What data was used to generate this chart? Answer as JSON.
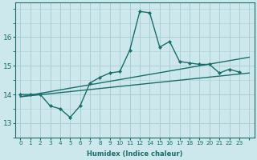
{
  "xlabel": "Humidex (Indice chaleur)",
  "bg_color": "#cce8ec",
  "grid_color": "#aacfd4",
  "line_color": "#1a6e6a",
  "xlim": [
    -0.5,
    23.5
  ],
  "ylim": [
    12.5,
    17.2
  ],
  "yticks": [
    13,
    14,
    15,
    16
  ],
  "xtick_positions": [
    0,
    1,
    2,
    3,
    4,
    5,
    6,
    7,
    8,
    9,
    10,
    11,
    12,
    13,
    14,
    15,
    16,
    17,
    18,
    19,
    20,
    21,
    22,
    23
  ],
  "xtick_labels": [
    "0",
    "1",
    "2",
    "3",
    "4",
    "5",
    "6",
    "7",
    "8",
    "9",
    "10",
    "11",
    "12",
    "14",
    "15",
    "16",
    "17",
    "18",
    "19",
    "20",
    "21",
    "22",
    "23",
    ""
  ],
  "line1_x": [
    0,
    1,
    2,
    3,
    4,
    5,
    6,
    7,
    8,
    9,
    10,
    11,
    12,
    13,
    14,
    15,
    16,
    17,
    18,
    19,
    20,
    21,
    22
  ],
  "line1_y": [
    14.0,
    14.0,
    14.0,
    13.6,
    13.5,
    13.2,
    13.6,
    14.4,
    14.6,
    14.75,
    14.8,
    15.55,
    16.9,
    16.85,
    15.65,
    15.85,
    15.15,
    15.1,
    15.05,
    15.05,
    14.75,
    14.88,
    14.78
  ],
  "line2_x": [
    0,
    23
  ],
  "line2_y": [
    13.92,
    15.3
  ],
  "line3_x": [
    0,
    23
  ],
  "line3_y": [
    13.92,
    14.75
  ]
}
